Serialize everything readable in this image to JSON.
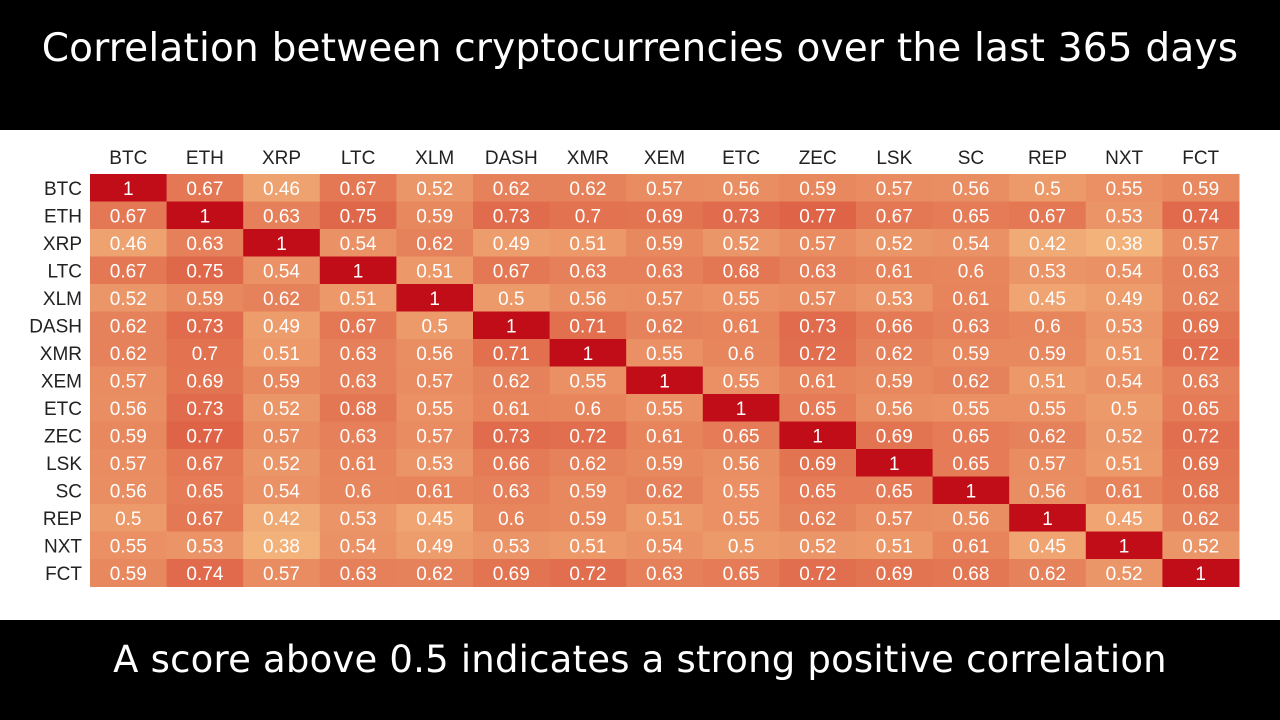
{
  "title": "Correlation between cryptocurrencies over the last 365 days",
  "caption": "A score above 0.5 indicates a strong positive correlation",
  "colors": {
    "background": "#000000",
    "panel": "#ffffff",
    "scale_low": "#f2b27a",
    "scale_high": "#c2101a"
  },
  "chart_data": {
    "type": "heatmap",
    "title": "",
    "x_labels": [
      "BTC",
      "ETH",
      "XRP",
      "LTC",
      "XLM",
      "DASH",
      "XMR",
      "XEM",
      "ETC",
      "ZEC",
      "LSK",
      "SC",
      "REP",
      "NXT",
      "FCT"
    ],
    "y_labels": [
      "BTC",
      "ETH",
      "XRP",
      "LTC",
      "XLM",
      "DASH",
      "XMR",
      "XEM",
      "ETC",
      "ZEC",
      "LSK",
      "SC",
      "REP",
      "NXT",
      "FCT"
    ],
    "values": [
      [
        "1",
        "0.67",
        "0.46",
        "0.67",
        "0.52",
        "0.62",
        "0.62",
        "0.57",
        "0.56",
        "0.59",
        "0.57",
        "0.56",
        "0.5",
        "0.55",
        "0.59"
      ],
      [
        "0.67",
        "1",
        "0.63",
        "0.75",
        "0.59",
        "0.73",
        "0.7",
        "0.69",
        "0.73",
        "0.77",
        "0.67",
        "0.65",
        "0.67",
        "0.53",
        "0.74"
      ],
      [
        "0.46",
        "0.63",
        "1",
        "0.54",
        "0.62",
        "0.49",
        "0.51",
        "0.59",
        "0.52",
        "0.57",
        "0.52",
        "0.54",
        "0.42",
        "0.38",
        "0.57"
      ],
      [
        "0.67",
        "0.75",
        "0.54",
        "1",
        "0.51",
        "0.67",
        "0.63",
        "0.63",
        "0.68",
        "0.63",
        "0.61",
        "0.6",
        "0.53",
        "0.54",
        "0.63"
      ],
      [
        "0.52",
        "0.59",
        "0.62",
        "0.51",
        "1",
        "0.5",
        "0.56",
        "0.57",
        "0.55",
        "0.57",
        "0.53",
        "0.61",
        "0.45",
        "0.49",
        "0.62"
      ],
      [
        "0.62",
        "0.73",
        "0.49",
        "0.67",
        "0.5",
        "1",
        "0.71",
        "0.62",
        "0.61",
        "0.73",
        "0.66",
        "0.63",
        "0.6",
        "0.53",
        "0.69"
      ],
      [
        "0.62",
        "0.7",
        "0.51",
        "0.63",
        "0.56",
        "0.71",
        "1",
        "0.55",
        "0.6",
        "0.72",
        "0.62",
        "0.59",
        "0.59",
        "0.51",
        "0.72"
      ],
      [
        "0.57",
        "0.69",
        "0.59",
        "0.63",
        "0.57",
        "0.62",
        "0.55",
        "1",
        "0.55",
        "0.61",
        "0.59",
        "0.62",
        "0.51",
        "0.54",
        "0.63"
      ],
      [
        "0.56",
        "0.73",
        "0.52",
        "0.68",
        "0.55",
        "0.61",
        "0.6",
        "0.55",
        "1",
        "0.65",
        "0.56",
        "0.55",
        "0.55",
        "0.5",
        "0.65"
      ],
      [
        "0.59",
        "0.77",
        "0.57",
        "0.63",
        "0.57",
        "0.73",
        "0.72",
        "0.61",
        "0.65",
        "1",
        "0.69",
        "0.65",
        "0.62",
        "0.52",
        "0.72"
      ],
      [
        "0.57",
        "0.67",
        "0.52",
        "0.61",
        "0.53",
        "0.66",
        "0.62",
        "0.59",
        "0.56",
        "0.69",
        "1",
        "0.65",
        "0.57",
        "0.51",
        "0.69"
      ],
      [
        "0.56",
        "0.65",
        "0.54",
        "0.6",
        "0.61",
        "0.63",
        "0.59",
        "0.62",
        "0.55",
        "0.65",
        "0.65",
        "1",
        "0.56",
        "0.61",
        "0.68"
      ],
      [
        "0.5",
        "0.67",
        "0.42",
        "0.53",
        "0.45",
        "0.6",
        "0.59",
        "0.51",
        "0.55",
        "0.62",
        "0.57",
        "0.56",
        "1",
        "0.45",
        "0.62"
      ],
      [
        "0.55",
        "0.53",
        "0.38",
        "0.54",
        "0.49",
        "0.53",
        "0.51",
        "0.54",
        "0.5",
        "0.52",
        "0.51",
        "0.61",
        "0.45",
        "1",
        "0.52"
      ],
      [
        "0.59",
        "0.74",
        "0.57",
        "0.63",
        "0.62",
        "0.69",
        "0.72",
        "0.63",
        "0.65",
        "0.72",
        "0.69",
        "0.68",
        "0.62",
        "0.52",
        "1"
      ]
    ],
    "color_scale": [
      "#f2b27a",
      "#c2101a"
    ],
    "grid": false
  }
}
